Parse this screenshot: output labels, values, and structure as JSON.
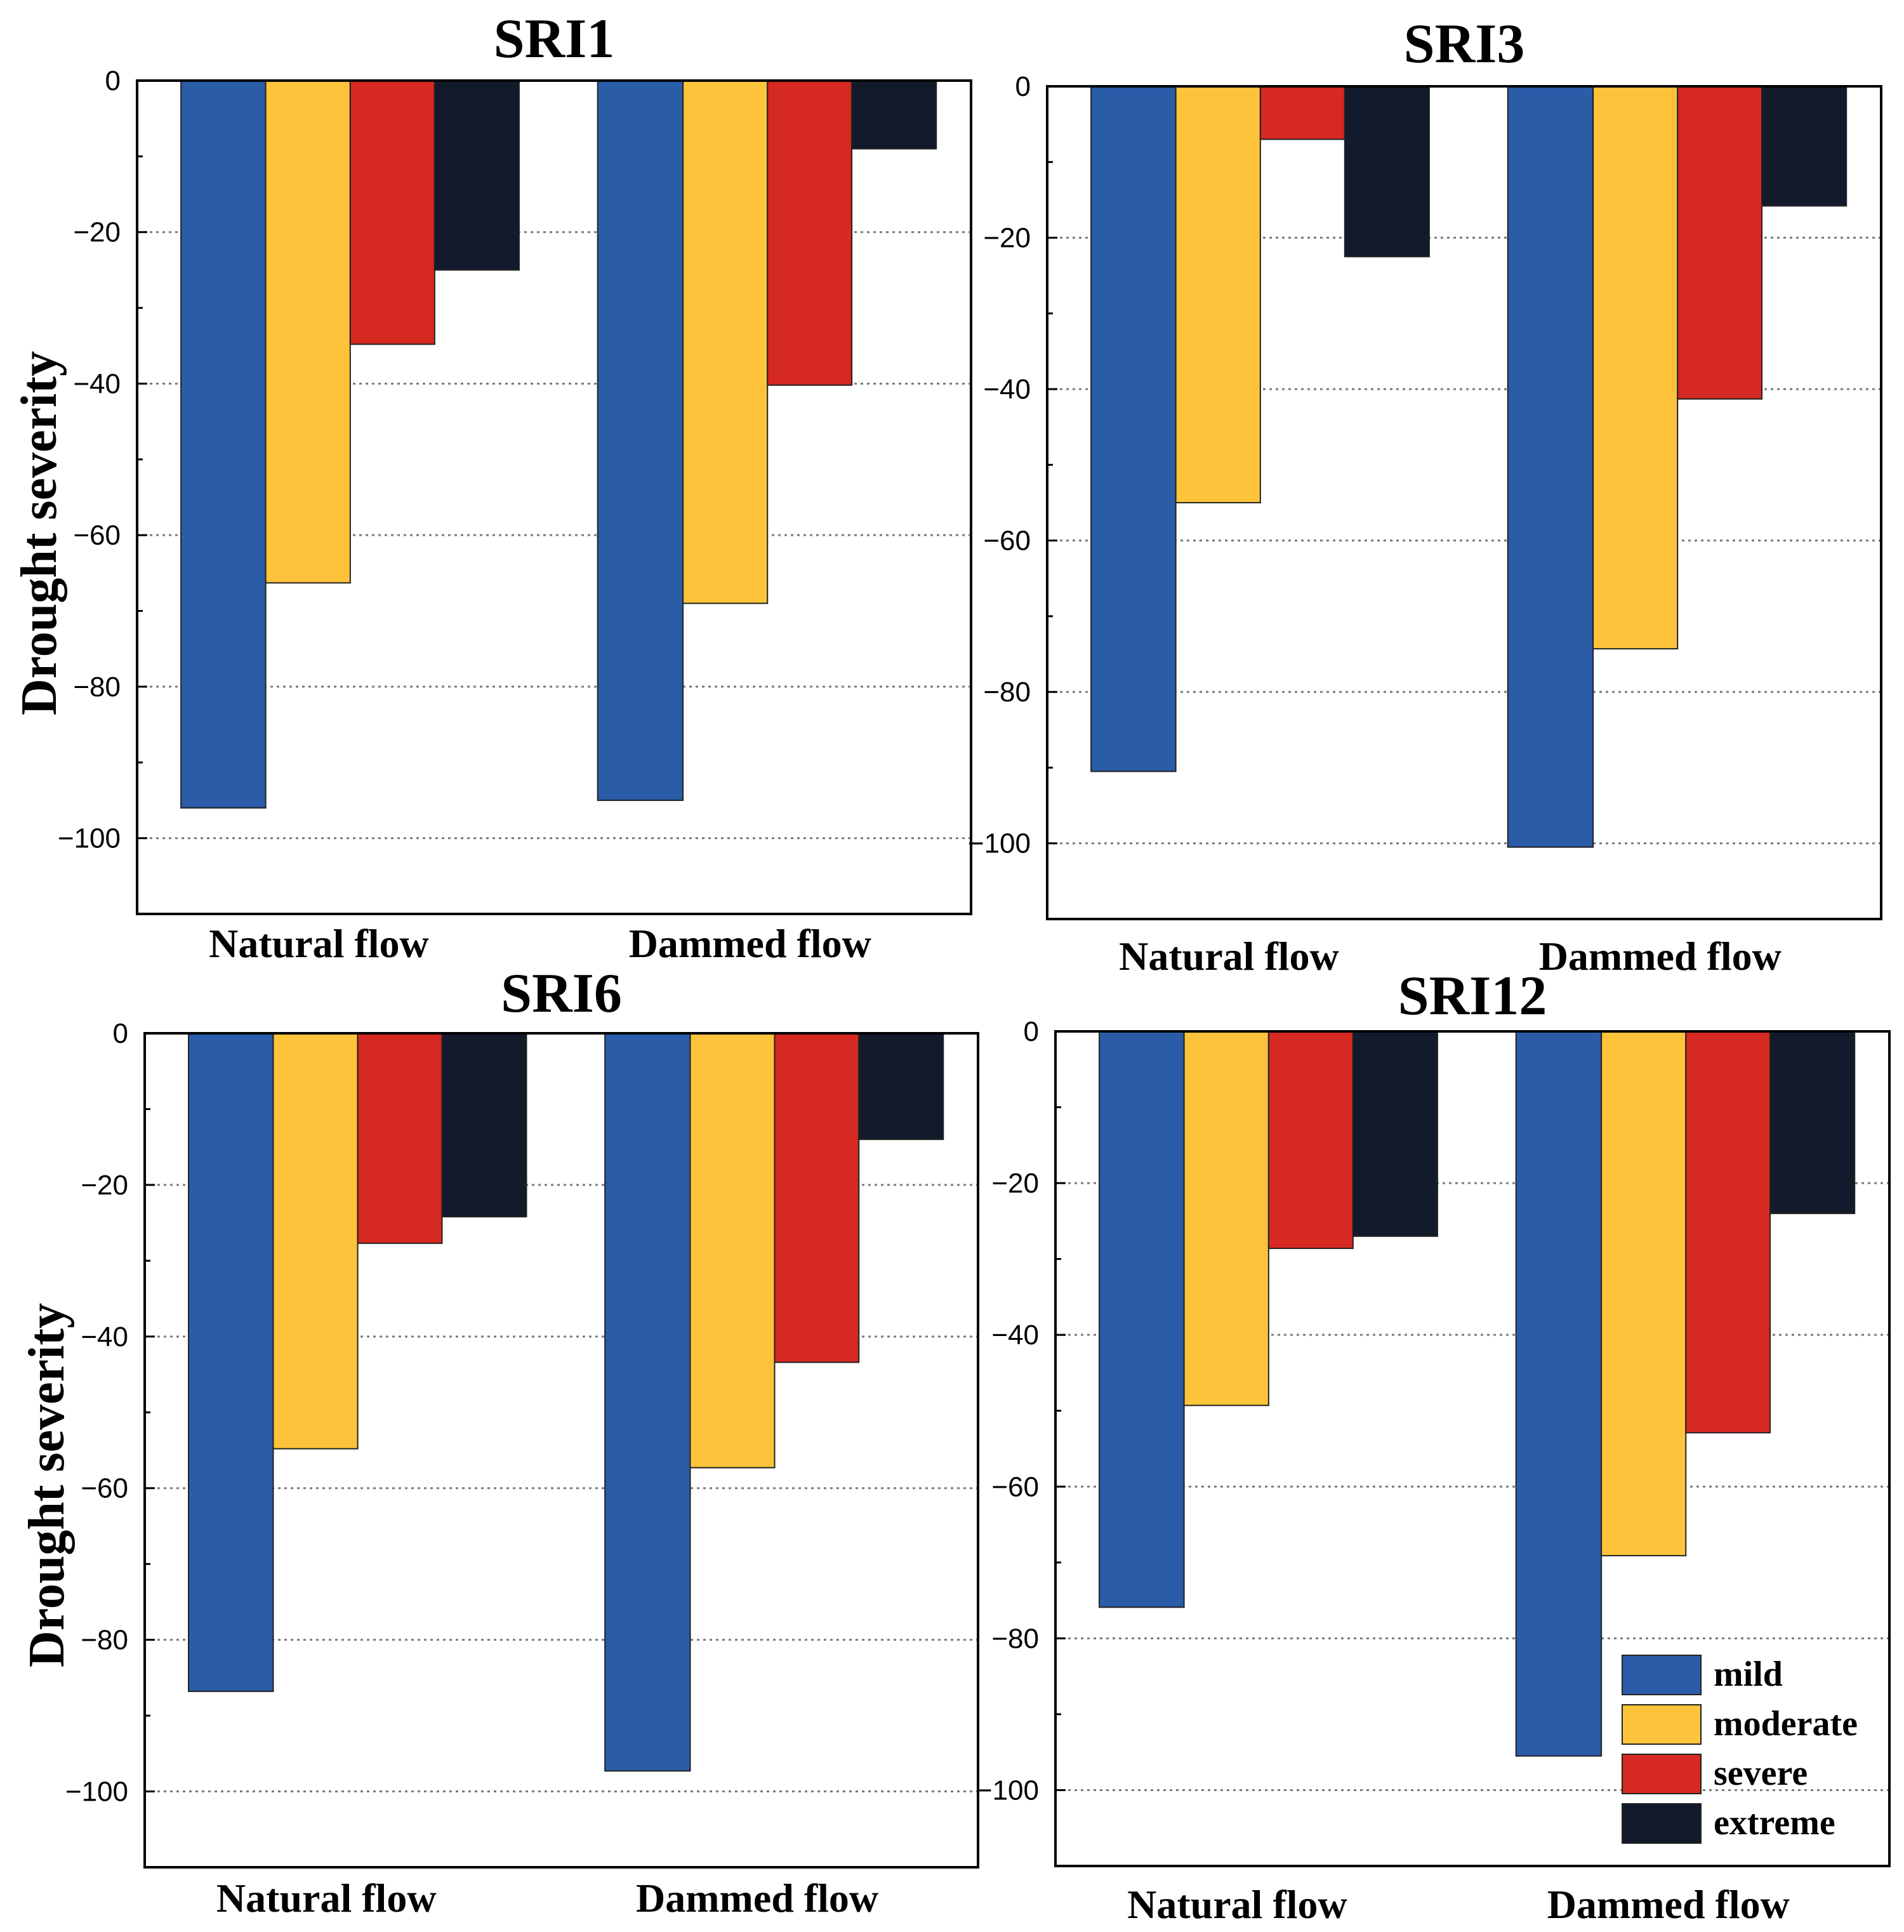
{
  "figure": {
    "ylabel": "Drought severity"
  },
  "legend": {
    "entries": [
      {
        "label": "mild",
        "color": "#2a5ca7"
      },
      {
        "label": "moderate",
        "color": "#fdc33a"
      },
      {
        "label": "severe",
        "color": "#d52921"
      },
      {
        "label": "extreme",
        "color": "#121a2c"
      }
    ]
  },
  "chart_data": [
    {
      "type": "bar",
      "title": "SRI1",
      "ylabel": "Drought severity",
      "ylim": [
        -110,
        0
      ],
      "yticks": [
        0,
        -20,
        -40,
        -60,
        -80,
        -100
      ],
      "categories": [
        "Natural flow",
        "Dammed flow"
      ],
      "series": [
        {
          "name": "mild",
          "color": "#2a5ca7",
          "values": [
            -96,
            -95
          ]
        },
        {
          "name": "moderate",
          "color": "#fdc33a",
          "values": [
            -66.3,
            -69
          ]
        },
        {
          "name": "severe",
          "color": "#d52921",
          "values": [
            -34.8,
            -40.2
          ]
        },
        {
          "name": "extreme",
          "color": "#121a2c",
          "values": [
            -25,
            -9
          ]
        }
      ]
    },
    {
      "type": "bar",
      "title": "SRI3",
      "ylabel": "",
      "ylim": [
        -110,
        0
      ],
      "yticks": [
        0,
        -20,
        -40,
        -60,
        -80,
        -100
      ],
      "categories": [
        "Natural flow",
        "Dammed flow"
      ],
      "series": [
        {
          "name": "mild",
          "color": "#2a5ca7",
          "values": [
            -90.5,
            -100.5
          ]
        },
        {
          "name": "moderate",
          "color": "#fdc33a",
          "values": [
            -55,
            -74.3
          ]
        },
        {
          "name": "severe",
          "color": "#d52921",
          "values": [
            -7,
            -41.3
          ]
        },
        {
          "name": "extreme",
          "color": "#121a2c",
          "values": [
            -22.5,
            -15.8
          ]
        }
      ]
    },
    {
      "type": "bar",
      "title": "SRI6",
      "ylabel": "Drought severity",
      "ylim": [
        -110,
        0
      ],
      "yticks": [
        0,
        -20,
        -40,
        -60,
        -80,
        -100
      ],
      "categories": [
        "Natural flow",
        "Dammed flow"
      ],
      "series": [
        {
          "name": "mild",
          "color": "#2a5ca7",
          "values": [
            -86.8,
            -97.3
          ]
        },
        {
          "name": "moderate",
          "color": "#fdc33a",
          "values": [
            -54.8,
            -57.3
          ]
        },
        {
          "name": "severe",
          "color": "#d52921",
          "values": [
            -27.7,
            -43.4
          ]
        },
        {
          "name": "extreme",
          "color": "#121a2c",
          "values": [
            -24.2,
            -14
          ]
        }
      ]
    },
    {
      "type": "bar",
      "title": "SRI12",
      "ylabel": "",
      "ylim": [
        -110,
        0
      ],
      "yticks": [
        0,
        -20,
        -40,
        -60,
        -80,
        -100
      ],
      "categories": [
        "Natural flow",
        "Dammed flow"
      ],
      "legend": "bottom-right",
      "series": [
        {
          "name": "mild",
          "color": "#2a5ca7",
          "values": [
            -75.9,
            -95.5
          ]
        },
        {
          "name": "moderate",
          "color": "#fdc33a",
          "values": [
            -49.3,
            -69.1
          ]
        },
        {
          "name": "severe",
          "color": "#d52921",
          "values": [
            -28.6,
            -52.9
          ]
        },
        {
          "name": "extreme",
          "color": "#121a2c",
          "values": [
            -27,
            -24
          ]
        }
      ]
    }
  ]
}
